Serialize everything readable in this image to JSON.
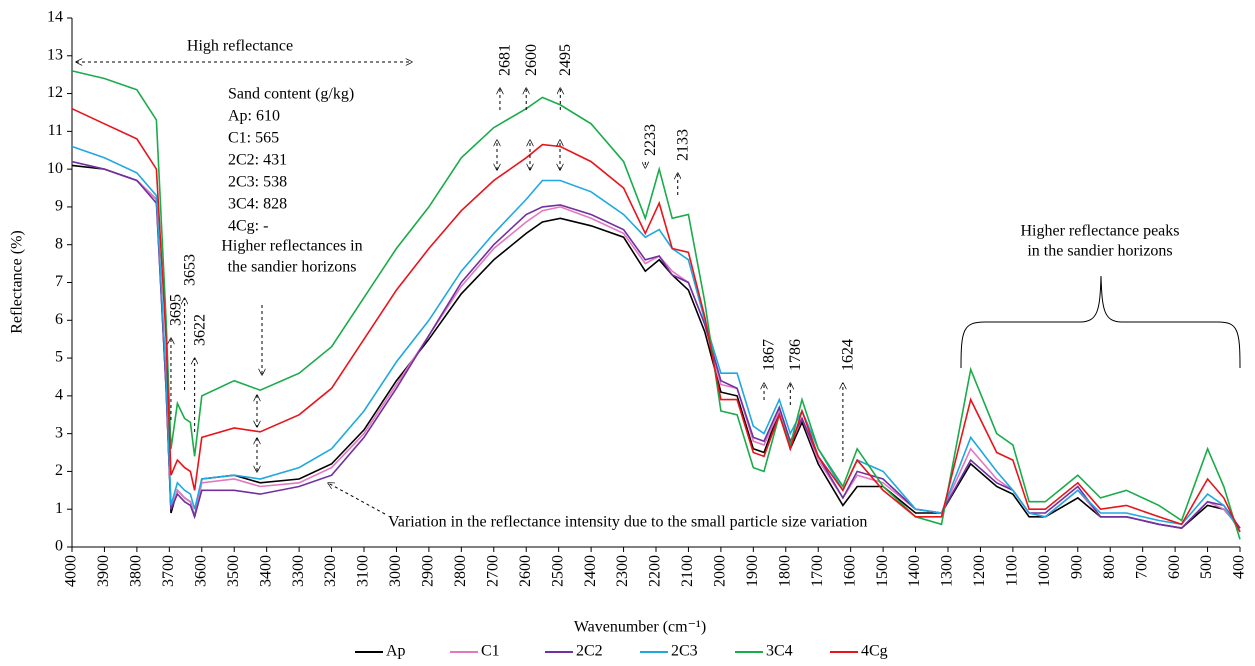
{
  "chart_data": {
    "type": "line",
    "x_label": "Wavenumber (cm⁻¹)",
    "y_label": "Reflectance (%)",
    "xlim": [
      4000,
      400
    ],
    "ylim": [
      0,
      14
    ],
    "xticks": [
      4000,
      3900,
      3800,
      3700,
      3600,
      3500,
      3400,
      3300,
      3200,
      3100,
      3000,
      2900,
      2800,
      2700,
      2600,
      2500,
      2400,
      2300,
      2200,
      2100,
      2000,
      1900,
      1800,
      1700,
      1600,
      1500,
      1400,
      1300,
      1200,
      1100,
      1000,
      900,
      800,
      700,
      600,
      500,
      400
    ],
    "yticks": [
      0,
      1,
      2,
      3,
      4,
      5,
      6,
      7,
      8,
      9,
      10,
      11,
      12,
      13,
      14
    ],
    "x": [
      4000,
      3900,
      3800,
      3740,
      3710,
      3695,
      3675,
      3653,
      3635,
      3622,
      3600,
      3500,
      3420,
      3300,
      3200,
      3100,
      3000,
      2900,
      2800,
      2700,
      2600,
      2550,
      2495,
      2400,
      2300,
      2233,
      2190,
      2150,
      2100,
      2050,
      2000,
      1950,
      1900,
      1867,
      1820,
      1786,
      1750,
      1700,
      1624,
      1580,
      1500,
      1400,
      1320,
      1230,
      1150,
      1100,
      1050,
      1000,
      900,
      830,
      750,
      650,
      580,
      500,
      450,
      400
    ],
    "series": [
      {
        "name": "Ap",
        "color": "#000000",
        "values": [
          10.1,
          10.0,
          9.7,
          9.2,
          4.2,
          0.9,
          1.5,
          1.3,
          1.2,
          0.8,
          1.8,
          1.9,
          1.7,
          1.8,
          2.2,
          3.1,
          4.4,
          5.5,
          6.7,
          7.6,
          8.3,
          8.6,
          8.7,
          8.5,
          8.2,
          7.3,
          7.6,
          7.2,
          6.8,
          5.7,
          4.1,
          4.0,
          2.6,
          2.5,
          3.6,
          2.6,
          3.3,
          2.2,
          1.1,
          1.6,
          1.6,
          0.9,
          0.9,
          2.2,
          1.6,
          1.4,
          0.8,
          0.8,
          1.3,
          0.8,
          0.8,
          0.6,
          0.5,
          1.1,
          1.0,
          0.5
        ]
      },
      {
        "name": "C1",
        "color": "#e377c2",
        "values": [
          10.2,
          10.0,
          9.7,
          9.2,
          4.3,
          1.0,
          1.5,
          1.3,
          1.2,
          0.8,
          1.7,
          1.8,
          1.6,
          1.7,
          2.1,
          3.0,
          4.3,
          5.6,
          6.9,
          7.9,
          8.6,
          8.9,
          9.0,
          8.7,
          8.3,
          7.5,
          7.7,
          7.3,
          7.0,
          5.9,
          4.3,
          4.2,
          2.8,
          2.7,
          3.6,
          2.7,
          3.4,
          2.3,
          1.3,
          1.9,
          1.7,
          1.0,
          0.9,
          2.6,
          1.8,
          1.5,
          0.9,
          0.8,
          1.5,
          0.8,
          0.8,
          0.6,
          0.5,
          1.2,
          1.0,
          0.5
        ]
      },
      {
        "name": "2C2",
        "color": "#7030a0",
        "values": [
          10.2,
          10.0,
          9.7,
          9.1,
          4.2,
          1.0,
          1.4,
          1.2,
          1.1,
          0.8,
          1.5,
          1.5,
          1.4,
          1.6,
          1.9,
          2.9,
          4.2,
          5.6,
          7.0,
          8.0,
          8.8,
          9.0,
          9.05,
          8.8,
          8.4,
          7.6,
          7.7,
          7.2,
          7.0,
          5.9,
          4.4,
          4.2,
          2.9,
          2.8,
          3.7,
          2.8,
          3.4,
          2.4,
          1.3,
          2.0,
          1.8,
          1.0,
          0.9,
          2.3,
          1.7,
          1.5,
          0.9,
          0.9,
          1.6,
          0.8,
          0.8,
          0.6,
          0.5,
          1.2,
          1.1,
          0.5
        ]
      },
      {
        "name": "2C3",
        "color": "#1fa8e0",
        "values": [
          10.6,
          10.3,
          9.9,
          9.3,
          4.5,
          1.1,
          1.7,
          1.5,
          1.4,
          1.0,
          1.8,
          1.9,
          1.8,
          2.1,
          2.6,
          3.6,
          4.9,
          6.0,
          7.3,
          8.3,
          9.2,
          9.7,
          9.7,
          9.4,
          8.8,
          8.2,
          8.4,
          7.9,
          7.6,
          6.0,
          4.6,
          4.6,
          3.2,
          3.0,
          3.9,
          3.0,
          3.6,
          2.6,
          1.5,
          2.3,
          2.0,
          1.0,
          0.9,
          2.9,
          2.0,
          1.5,
          0.9,
          0.8,
          1.5,
          0.9,
          0.9,
          0.7,
          0.6,
          1.4,
          1.1,
          0.4
        ]
      },
      {
        "name": "3C4",
        "color": "#1aab4b",
        "values": [
          12.6,
          12.4,
          12.1,
          11.3,
          6.0,
          2.6,
          3.8,
          3.4,
          3.3,
          2.4,
          4.0,
          4.4,
          4.15,
          4.6,
          5.3,
          6.6,
          7.9,
          9.0,
          10.3,
          11.1,
          11.6,
          11.9,
          11.7,
          11.2,
          10.2,
          8.7,
          10.0,
          8.7,
          8.8,
          6.5,
          3.6,
          3.5,
          2.1,
          2.0,
          3.5,
          2.7,
          3.9,
          2.6,
          1.6,
          2.6,
          1.6,
          0.8,
          0.6,
          4.7,
          3.0,
          2.7,
          1.2,
          1.2,
          1.9,
          1.3,
          1.5,
          1.1,
          0.7,
          2.6,
          1.6,
          0.2
        ]
      },
      {
        "name": "4Cg",
        "color": "#e8141b",
        "values": [
          11.6,
          11.2,
          10.8,
          10.0,
          5.5,
          1.9,
          2.3,
          2.1,
          2.0,
          1.5,
          2.9,
          3.15,
          3.05,
          3.5,
          4.2,
          5.5,
          6.8,
          7.9,
          8.9,
          9.7,
          10.3,
          10.65,
          10.6,
          10.2,
          9.5,
          8.3,
          9.1,
          7.9,
          7.8,
          6.1,
          3.9,
          3.9,
          2.5,
          2.4,
          3.5,
          2.6,
          3.6,
          2.4,
          1.5,
          2.3,
          1.5,
          0.8,
          0.8,
          3.9,
          2.5,
          2.3,
          1.0,
          1.0,
          1.7,
          1.0,
          1.1,
          0.8,
          0.6,
          1.8,
          1.3,
          0.4
        ]
      }
    ],
    "peaks": [
      3695,
      3653,
      3622,
      2681,
      2600,
      2495,
      2233,
      2133,
      1867,
      1786,
      1624
    ],
    "annotations": [
      "High reflectance",
      "Sand content (g/kg)",
      "Ap: 610",
      "C1: 565",
      "2C2: 431",
      "2C3: 538",
      "3C4: 828",
      "4Cg: -",
      "Higher reflectances in",
      "the sandier horizons",
      "Higher reflectance peaks",
      "in the sandier horizons",
      "Variation in the reflectance intensity due to the small particle size variation"
    ]
  }
}
